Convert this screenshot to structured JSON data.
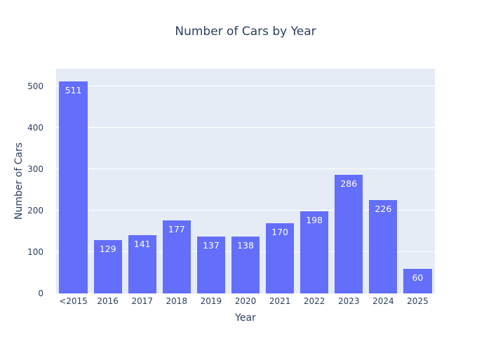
{
  "chart_data": {
    "type": "bar",
    "title": "Number of Cars by Year",
    "xlabel": "Year",
    "ylabel": "Number of Cars",
    "categories": [
      "<2015",
      "2016",
      "2017",
      "2018",
      "2019",
      "2020",
      "2021",
      "2022",
      "2023",
      "2024",
      "2025"
    ],
    "values": [
      511,
      129,
      141,
      177,
      137,
      138,
      170,
      198,
      286,
      226,
      60
    ],
    "bar_value_labels": [
      "511",
      "129",
      "141",
      "177",
      "137",
      "138",
      "170",
      "198",
      "286",
      "226",
      "60"
    ],
    "ylim": [
      0,
      542
    ],
    "yticks": [
      0,
      100,
      200,
      300,
      400,
      500
    ],
    "grid": "horizontal",
    "legend": "none",
    "value_label_position": "inside-top",
    "colors": {
      "bar": "#636efa",
      "plot_background": "#e5ecf6",
      "figure_background": "#ffffff",
      "gridline": "#ffffff",
      "text": "#2a3f5f",
      "bar_label_text": "#ffffff"
    }
  }
}
